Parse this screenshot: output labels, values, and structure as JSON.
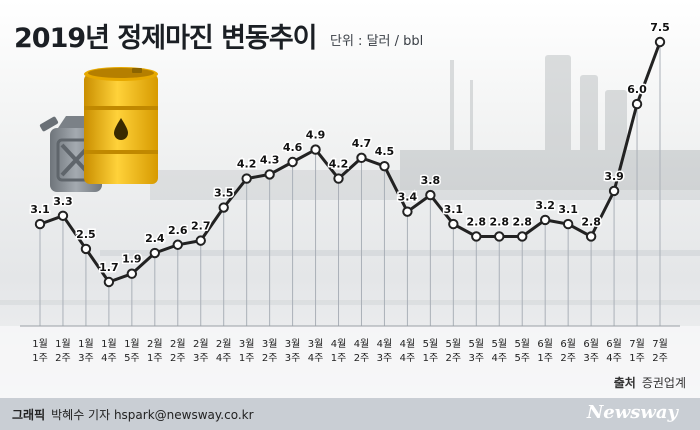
{
  "header": {
    "title": "2019년 정제마진 변동추이",
    "unit": "단위 : 달러 / bbl"
  },
  "source": {
    "label": "출처",
    "name": "증권업계"
  },
  "footer": {
    "credit_label": "그래픽",
    "credit_text": "박혜수 기자 hspark@newsway.co.kr",
    "brand": "Newsway"
  },
  "colors": {
    "line": "#222222",
    "marker_fill": "#ffffff",
    "guide": "#aab0b8",
    "barrel": "#f2b705",
    "jerrycan": "#8a9096"
  },
  "icons": [
    "oil-barrel-icon",
    "jerrycan-icon"
  ],
  "chart_data": {
    "type": "line",
    "title": "2019년 정제마진 변동추이",
    "unit": "달러 / bbl",
    "categories": [
      [
        "1월",
        "1주"
      ],
      [
        "1월",
        "2주"
      ],
      [
        "1월",
        "3주"
      ],
      [
        "1월",
        "4주"
      ],
      [
        "1월",
        "5주"
      ],
      [
        "2월",
        "1주"
      ],
      [
        "2월",
        "2주"
      ],
      [
        "2월",
        "3주"
      ],
      [
        "2월",
        "4주"
      ],
      [
        "3월",
        "1주"
      ],
      [
        "3월",
        "2주"
      ],
      [
        "3월",
        "3주"
      ],
      [
        "3월",
        "4주"
      ],
      [
        "4월",
        "1주"
      ],
      [
        "4월",
        "2주"
      ],
      [
        "4월",
        "3주"
      ],
      [
        "4월",
        "4주"
      ],
      [
        "5월",
        "1주"
      ],
      [
        "5월",
        "2주"
      ],
      [
        "5월",
        "3주"
      ],
      [
        "5월",
        "4주"
      ],
      [
        "5월",
        "5주"
      ],
      [
        "6월",
        "1주"
      ],
      [
        "6월",
        "2주"
      ],
      [
        "6월",
        "3주"
      ],
      [
        "6월",
        "4주"
      ],
      [
        "7월",
        "1주"
      ],
      [
        "7월",
        "2주"
      ]
    ],
    "values": [
      3.1,
      3.3,
      2.5,
      1.7,
      1.9,
      2.4,
      2.6,
      2.7,
      3.5,
      4.2,
      4.3,
      4.6,
      4.9,
      4.2,
      4.7,
      4.5,
      3.4,
      3.8,
      3.1,
      2.8,
      2.8,
      2.8,
      3.2,
      3.1,
      2.8,
      3.9,
      6.0,
      7.5
    ],
    "data_labels": [
      "3.1",
      "3.3",
      "2.5",
      "1.7",
      "1.9",
      "2.4",
      "2.6",
      "2.7",
      "3.5",
      "4.2",
      "4.3",
      "4.6",
      "4.9",
      "4.2",
      "4.7",
      "4.5",
      "3.4",
      "3.8",
      "3.1",
      "2.8",
      "2.8",
      "2.8",
      "3.2",
      "3.1",
      "2.8",
      "3.9",
      "6.0",
      "7.5"
    ],
    "grid": false,
    "legend": "none"
  }
}
